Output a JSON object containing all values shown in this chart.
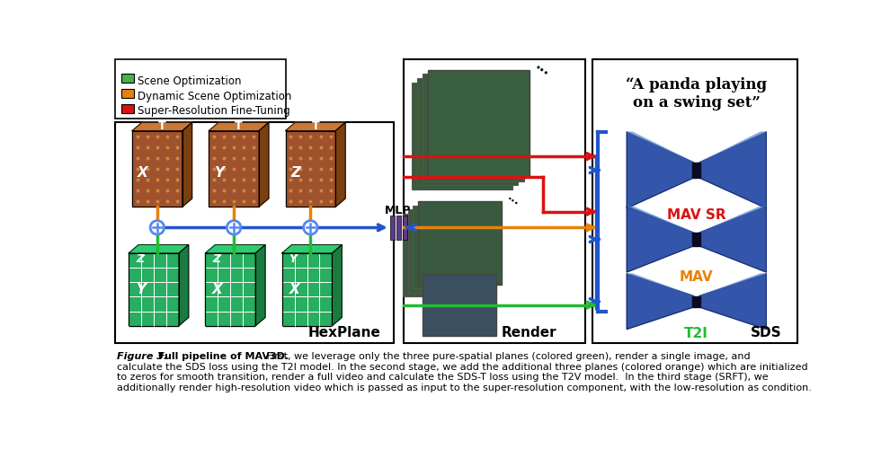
{
  "bg_color": "#ffffff",
  "legend_items": [
    {
      "label": "Scene Optimization",
      "color": "#4CAF50"
    },
    {
      "label": "Dynamic Scene Optimization",
      "color": "#E8820A"
    },
    {
      "label": "Super-Resolution Fine-Tuning",
      "color": "#DD1111"
    }
  ],
  "hexplane_label": "HexPlane",
  "render_label": "Render",
  "sds_label": "SDS",
  "mlp_label": "MLP",
  "mav_sr_label": "MAV SR",
  "mav_label": "MAV",
  "t2i_label": "T2I",
  "quote_text": "“A panda playing\non a swing set”",
  "caption_line1": "Figure 3. Full pipeline of MAV3D. First, we leverage only the three pure-spatial planes (colored green), render a single image, and",
  "caption_line2": "calculate the SDS loss using the T2I model. In the second stage, we add the additional three planes (colored orange) which are initialized",
  "caption_line3": "to zeros for smooth transition, render a full video and calculate the SDS-T loss using the T2V model.  In the third stage (SRFT), we",
  "caption_line4": "additionally render high-resolution video which is passed as input to the super-resolution component, with the low-resolution as condition.",
  "green_color": "#22BB33",
  "orange_color": "#E8820A",
  "red_color": "#DD1111",
  "blue_color": "#2255CC",
  "brown_front": "#A0522D",
  "brown_top": "#CC7733",
  "brown_side": "#7B3F10",
  "brown_grid": "#CC8844",
  "green_front": "#27AE60",
  "green_top": "#2ECC71",
  "green_side": "#1A7A40",
  "mlp_purple": "#5B3A8A",
  "sds_blue": "#3355AA",
  "sds_blue_dark": "#1A2A66",
  "sds_blue_light": "#4477CC"
}
